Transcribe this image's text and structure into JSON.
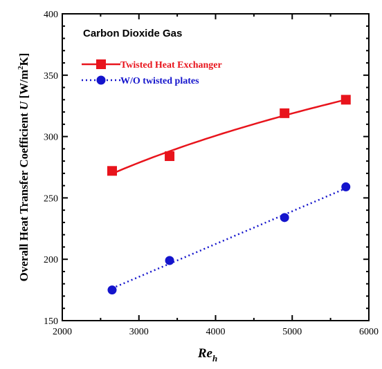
{
  "chart_data": {
    "type": "line",
    "annotation": "Carbon Dioxide Gas",
    "xlabel": "Re",
    "xlabel_sub": "h",
    "ylabel_main": "Overall Heat Transfer Coefficient ",
    "ylabel_var": "U",
    "ylabel_unit_a": " [W/m",
    "ylabel_unit_sup": "2",
    "ylabel_unit_b": "K]",
    "xlim": [
      2000,
      6000
    ],
    "ylim": [
      150,
      400
    ],
    "x_ticks": [
      2000,
      3000,
      4000,
      5000,
      6000
    ],
    "y_ticks": [
      150,
      200,
      250,
      300,
      350,
      400
    ],
    "x_tick_labels": [
      "2000",
      "3000",
      "4000",
      "5000",
      "6000"
    ],
    "y_tick_labels": [
      "150",
      "200",
      "250",
      "300",
      "350",
      "400"
    ],
    "legend_position": "top-left",
    "series": [
      {
        "name": "Twisted Heat Exchanger",
        "color": "#e8141c",
        "marker": "square",
        "line_style": "solid",
        "fit": "power",
        "x": [
          2650,
          3400,
          4900,
          5700
        ],
        "y": [
          272,
          284,
          319,
          330
        ]
      },
      {
        "name": "W/O twisted plates",
        "color": "#1414cc",
        "marker": "circle",
        "line_style": "dotted",
        "fit": "linear",
        "x": [
          2650,
          3400,
          4900,
          5700
        ],
        "y": [
          175,
          199,
          234,
          259
        ]
      }
    ]
  }
}
